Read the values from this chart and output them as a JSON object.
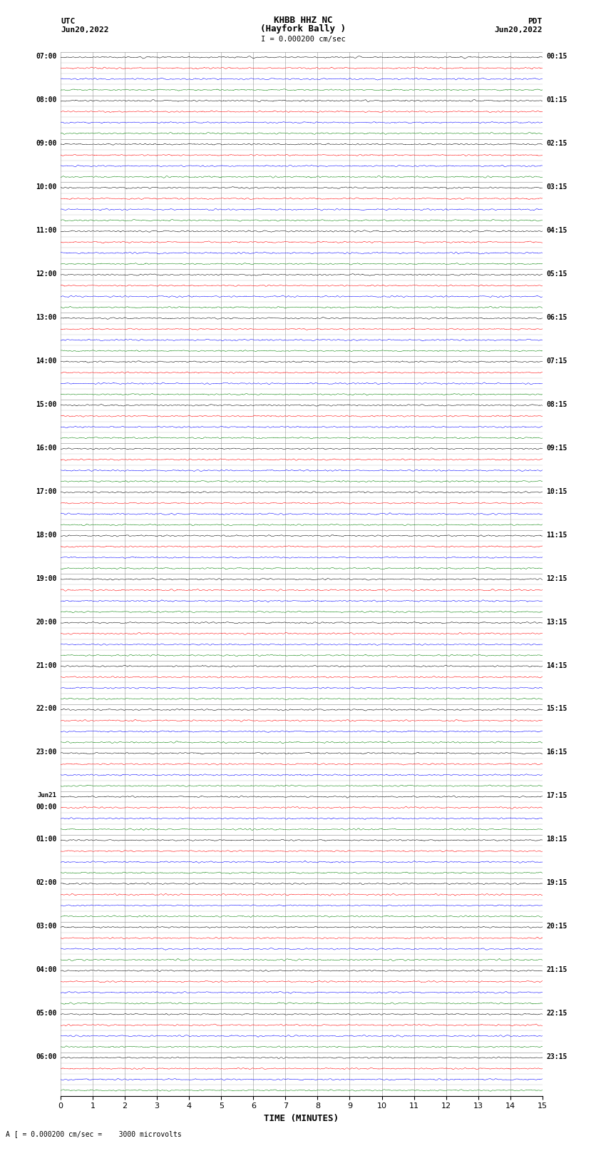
{
  "title_line1": "KHBB HHZ NC",
  "title_line2": "(Hayfork Bally )",
  "title_line3": "I = 0.000200 cm/sec",
  "left_label_line1": "UTC",
  "left_label_line2": "Jun20,2022",
  "right_label_line1": "PDT",
  "right_label_line2": "Jun20,2022",
  "x_label": "TIME (MINUTES)",
  "bottom_note": "A [ = 0.000200 cm/sec =    3000 microvolts",
  "utc_times": [
    "07:00",
    "08:00",
    "09:00",
    "10:00",
    "11:00",
    "12:00",
    "13:00",
    "14:00",
    "15:00",
    "16:00",
    "17:00",
    "18:00",
    "19:00",
    "20:00",
    "21:00",
    "22:00",
    "23:00",
    "Jun21\n00:00",
    "01:00",
    "02:00",
    "03:00",
    "04:00",
    "05:00",
    "06:00"
  ],
  "pdt_times": [
    "00:15",
    "01:15",
    "02:15",
    "03:15",
    "04:15",
    "05:15",
    "06:15",
    "07:15",
    "08:15",
    "09:15",
    "10:15",
    "11:15",
    "12:15",
    "13:15",
    "14:15",
    "15:15",
    "16:15",
    "17:15",
    "18:15",
    "19:15",
    "20:15",
    "21:15",
    "22:15",
    "23:15"
  ],
  "colors": [
    "black",
    "red",
    "blue",
    "green"
  ],
  "n_groups": 24,
  "n_traces_per_group": 4,
  "x_ticks": [
    0,
    1,
    2,
    3,
    4,
    5,
    6,
    7,
    8,
    9,
    10,
    11,
    12,
    13,
    14,
    15
  ],
  "background_color": "white",
  "trace_noise_amp": 0.028,
  "figwidth": 8.5,
  "figheight": 16.13,
  "dpi": 100
}
